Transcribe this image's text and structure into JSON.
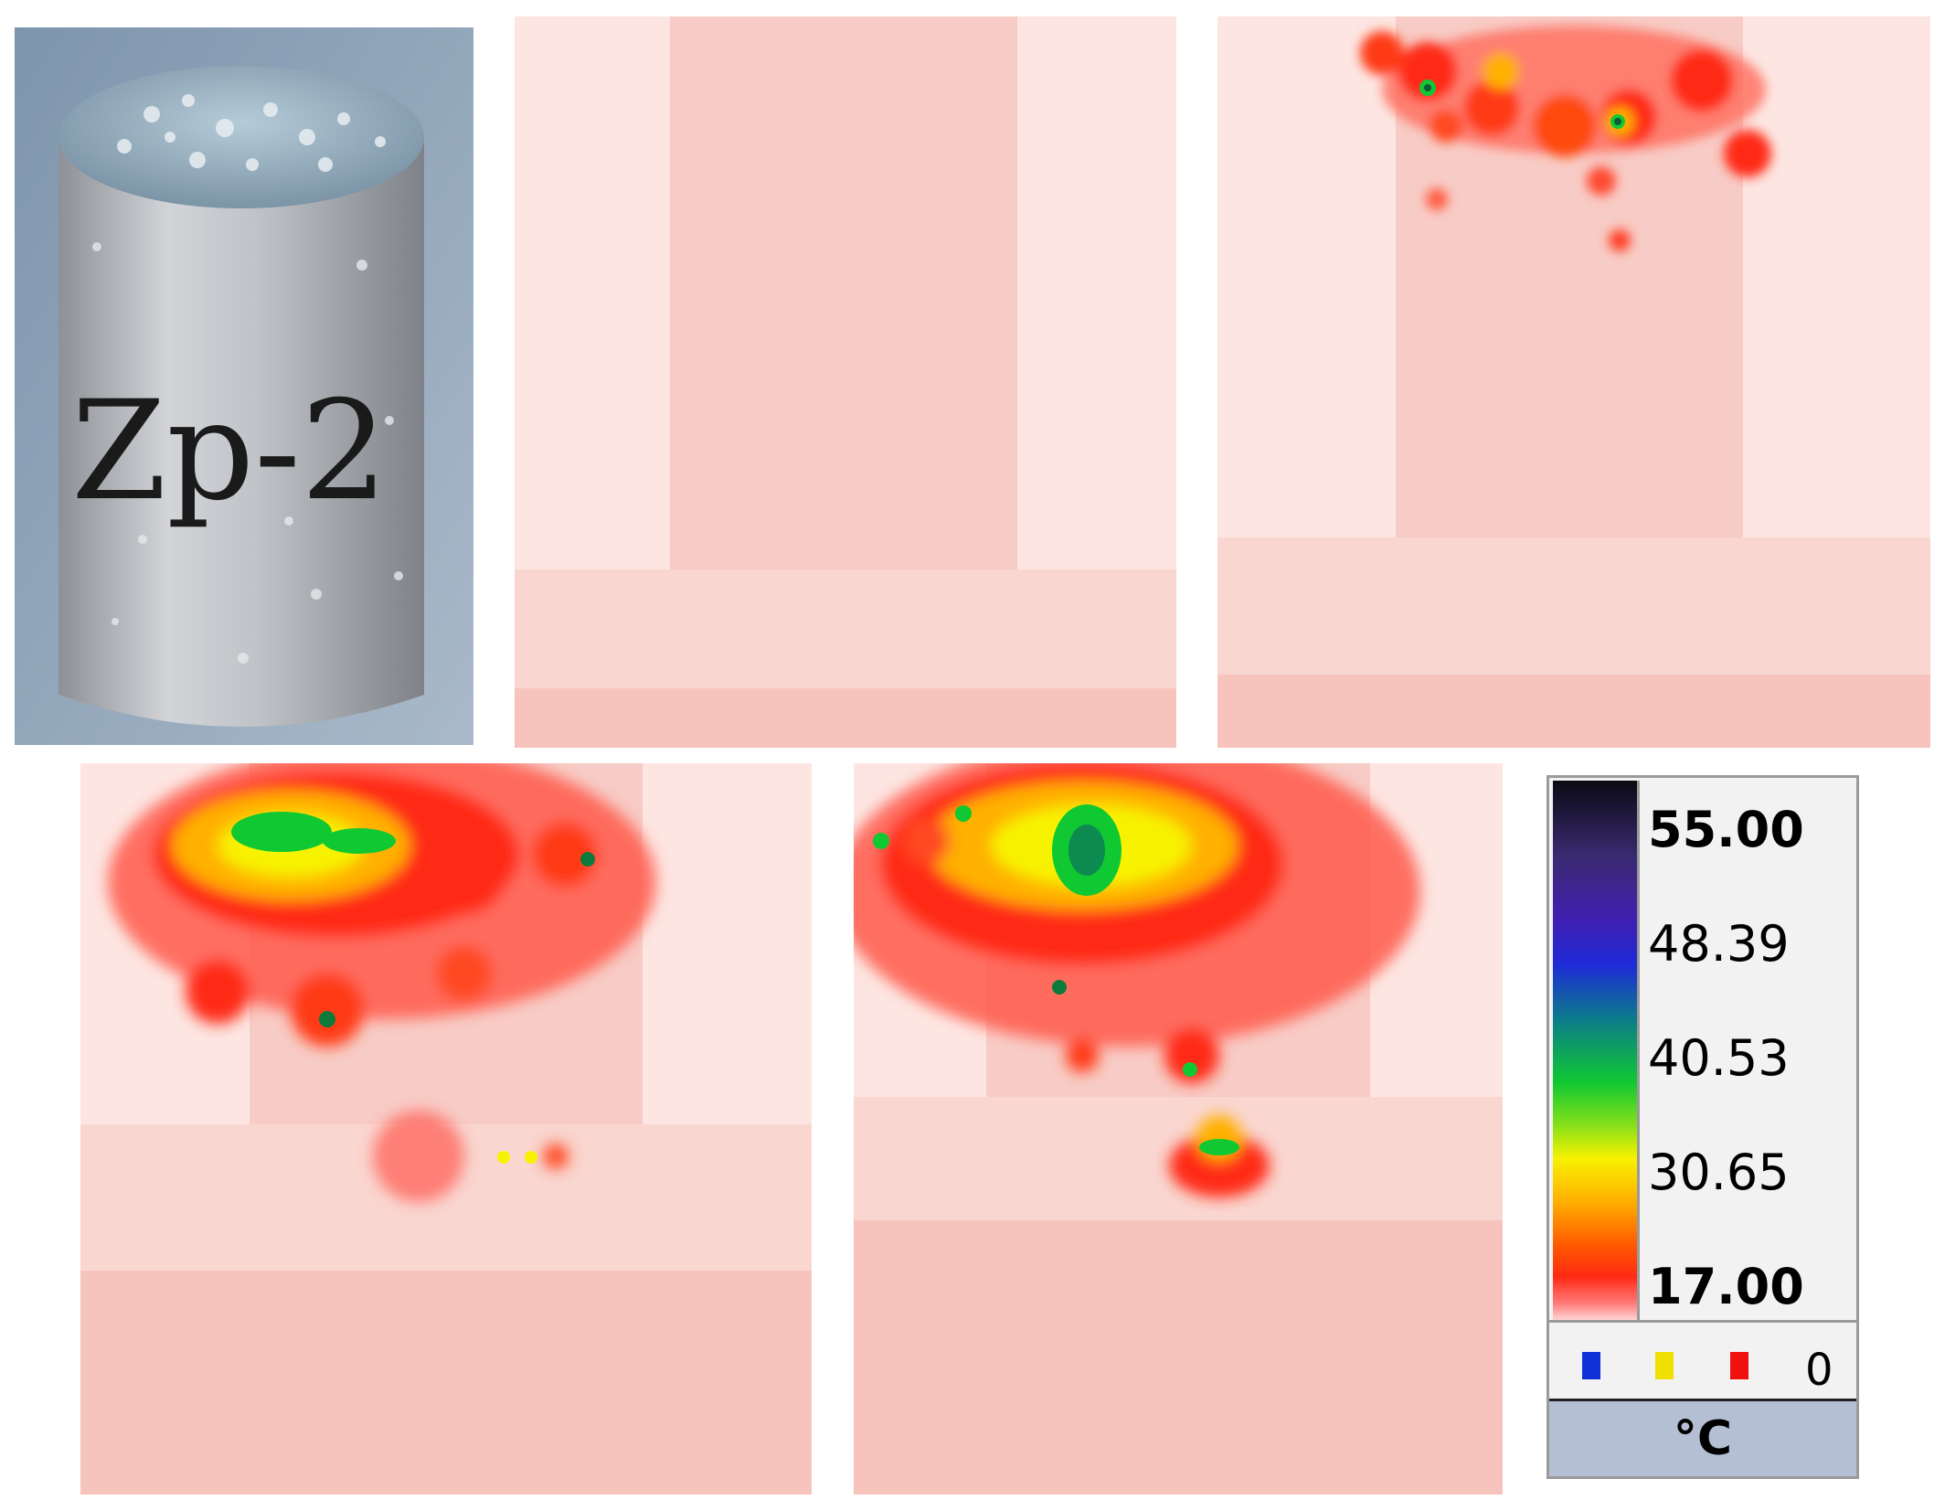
{
  "photo": {
    "specimen_label": "Zp-2"
  },
  "legend": {
    "ticks": [
      {
        "label": "55.00",
        "bold": true
      },
      {
        "label": "48.39",
        "bold": false
      },
      {
        "label": "40.53",
        "bold": false
      },
      {
        "label": "30.65",
        "bold": false
      },
      {
        "label": "17.00",
        "bold": true
      }
    ],
    "marker_colors": [
      "#1030d8",
      "#f0e000",
      "#f01010"
    ],
    "marker_count": "0",
    "unit": "°C",
    "range_min": 17.0,
    "range_max": 55.0
  },
  "colors": {
    "background_pink": "#fde4e0",
    "specimen_pink": "#f8c8c2",
    "hot_red": "#ff2a14",
    "hot_yellow": "#f7f200",
    "hot_green": "#10c832"
  }
}
